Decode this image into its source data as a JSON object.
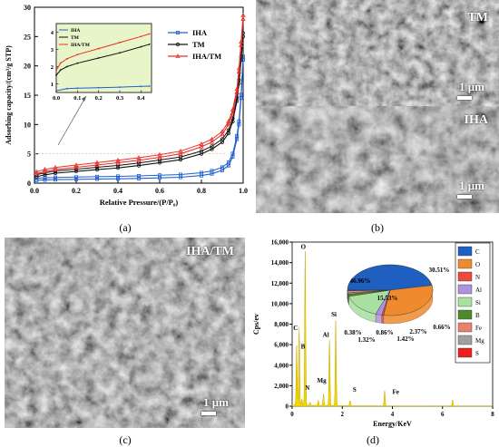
{
  "panel_a": {
    "caption": "(a)",
    "chart_data": {
      "type": "line",
      "title": "",
      "xlabel": "Relative Pressure/(P/P₀)",
      "ylabel": "Adsorbing capacity/(cm³/g STP)",
      "xlim": [
        0.0,
        1.0
      ],
      "ylim": [
        0,
        30
      ],
      "xticks": [
        "0.0",
        "0.2",
        "0.4",
        "0.6",
        "0.8",
        "1.0"
      ],
      "yticks": [
        "0",
        "5",
        "10",
        "15",
        "20",
        "25",
        "30"
      ],
      "legend_position": "top-right",
      "series": [
        {
          "name": "IHA",
          "color": "#1f5fd0",
          "x": [
            0.01,
            0.05,
            0.1,
            0.2,
            0.3,
            0.4,
            0.5,
            0.6,
            0.7,
            0.8,
            0.85,
            0.9,
            0.93,
            0.95,
            0.97,
            0.98,
            0.99,
            1.0
          ],
          "y": [
            0.5,
            0.55,
            0.6,
            0.65,
            0.7,
            0.75,
            0.8,
            0.9,
            1.0,
            1.3,
            1.6,
            2.2,
            3.0,
            4.5,
            7.5,
            10.0,
            14.5,
            21.0
          ]
        },
        {
          "name": "TM",
          "color": "#111111",
          "x": [
            0.01,
            0.05,
            0.1,
            0.2,
            0.3,
            0.4,
            0.5,
            0.6,
            0.7,
            0.8,
            0.85,
            0.9,
            0.93,
            0.95,
            0.97,
            0.98,
            0.99,
            1.0
          ],
          "y": [
            1.1,
            1.4,
            1.7,
            2.0,
            2.3,
            2.6,
            3.0,
            3.5,
            4.0,
            5.0,
            5.8,
            7.0,
            8.5,
            10.5,
            14.0,
            17.0,
            21.0,
            25.0
          ]
        },
        {
          "name": "IHA/TM",
          "color": "#e8302a",
          "x": [
            0.01,
            0.05,
            0.1,
            0.2,
            0.3,
            0.4,
            0.5,
            0.6,
            0.7,
            0.8,
            0.85,
            0.9,
            0.93,
            0.95,
            0.97,
            0.98,
            0.99,
            1.0
          ],
          "y": [
            1.6,
            2.0,
            2.3,
            2.7,
            3.1,
            3.5,
            3.9,
            4.4,
            5.0,
            6.2,
            7.0,
            8.3,
            10.0,
            12.0,
            15.5,
            19.0,
            23.5,
            28.0
          ]
        }
      ],
      "inset": {
        "xlim": [
          0.0,
          0.45
        ],
        "ylim": [
          0.5,
          4.5
        ],
        "xticks": [
          "0.0",
          "0.1",
          "0.2",
          "0.3",
          "0.4"
        ],
        "yticks": [
          "1",
          "2",
          "3",
          "4"
        ],
        "legend_position": "top-left",
        "series": [
          {
            "name": "IHA",
            "x": [
              0.0,
              0.05,
              0.1,
              0.2,
              0.3,
              0.4,
              0.44
            ],
            "y": [
              0.6,
              0.72,
              0.75,
              0.78,
              0.81,
              0.85,
              0.87
            ]
          },
          {
            "name": "TM",
            "x": [
              0.0,
              0.02,
              0.05,
              0.1,
              0.2,
              0.3,
              0.4,
              0.44
            ],
            "y": [
              1.5,
              1.8,
              2.0,
              2.2,
              2.5,
              2.8,
              3.15,
              3.3
            ]
          },
          {
            "name": "IHA/TM",
            "x": [
              0.0,
              0.02,
              0.05,
              0.1,
              0.2,
              0.3,
              0.4,
              0.44
            ],
            "y": [
              1.8,
              2.2,
              2.45,
              2.7,
              3.05,
              3.4,
              3.75,
              3.9
            ]
          }
        ]
      }
    }
  },
  "panel_b": {
    "caption": "(b)",
    "top_label": "TM",
    "bottom_label": "IHA",
    "scale_top": "1 μm",
    "scale_bottom": "1 μm"
  },
  "panel_c": {
    "caption": "(c)",
    "label": "IHA/TM",
    "scale": "1 μm"
  },
  "panel_d": {
    "caption": "(d)",
    "chart_data": {
      "type": "line",
      "title": "",
      "xlabel": "Energy/KeV",
      "ylabel": "Cps/ev",
      "xlim": [
        0,
        8
      ],
      "ylim": [
        0,
        16000
      ],
      "xticks": [
        "0",
        "2",
        "4",
        "6",
        "8"
      ],
      "yticks": [
        "0",
        "2,000",
        "4,000",
        "6,000",
        "8,000",
        "10,000",
        "12,000",
        "14,000",
        "16,000"
      ],
      "fill_color": "#f0d800",
      "peaks": [
        {
          "label": "C",
          "energy": 0.28,
          "cps": 7600
        },
        {
          "label": "B",
          "energy": 0.18,
          "cps": 5800
        },
        {
          "label": "O",
          "energy": 0.52,
          "cps": 15000
        },
        {
          "label": "N",
          "energy": 0.39,
          "cps": 600
        },
        {
          "label": "Mg",
          "energy": 1.25,
          "cps": 1100
        },
        {
          "label": "Al",
          "energy": 1.49,
          "cps": 6400
        },
        {
          "label": "Si",
          "energy": 1.74,
          "cps": 8300
        },
        {
          "label": "S",
          "energy": 2.31,
          "cps": 500
        },
        {
          "label": "Fe",
          "energy": 6.4,
          "cps": 600
        }
      ],
      "other_peaks": [
        {
          "energy": 3.69,
          "cps": 1500
        },
        {
          "energy": 1.04,
          "cps": 500
        },
        {
          "energy": 0.71,
          "cps": 300
        }
      ],
      "pie": {
        "type": "pie",
        "slices": [
          {
            "label": "C",
            "value": 46.96,
            "text": "46.96%",
            "color": "#1e5fbf"
          },
          {
            "label": "O",
            "value": 30.51,
            "text": "30.51%",
            "color": "#f08a2e"
          },
          {
            "label": "N",
            "value": 0.66,
            "text": "0.66%",
            "color": "#e84a3c"
          },
          {
            "label": "Al",
            "value": 2.37,
            "text": "2.37%",
            "color": "#b090e0"
          },
          {
            "label": "Si",
            "value": 15.53,
            "text": "15.53%",
            "color": "#a8e0a0"
          },
          {
            "label": "B",
            "value": 1.42,
            "text": "1.42%",
            "color": "#4d8a2a"
          },
          {
            "label": "Fe",
            "value": 0.86,
            "text": "0.86%",
            "color": "#e88070"
          },
          {
            "label": "Mg",
            "value": 1.32,
            "text": "1.32%",
            "color": "#a0a0a0"
          },
          {
            "label": "S",
            "value": 0.38,
            "text": "0.38%",
            "color": "#e82020"
          }
        ],
        "legend": [
          "C",
          "O",
          "N",
          "Al",
          "Si",
          "B",
          "Fe",
          "Mg",
          "S"
        ],
        "legend_colors": [
          "#1e5fbf",
          "#f08a2e",
          "#e84a3c",
          "#b090e0",
          "#a8e0a0",
          "#4d8a2a",
          "#e88070",
          "#a0a0a0",
          "#e82020"
        ]
      }
    }
  }
}
